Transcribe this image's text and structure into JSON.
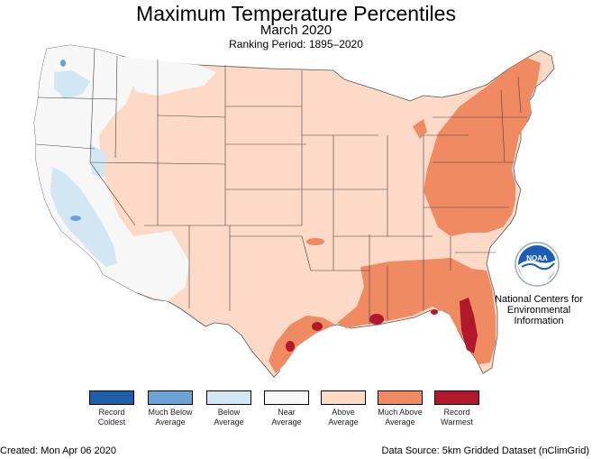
{
  "header": {
    "title": "Maximum Temperature Percentiles",
    "subtitle": "March 2020",
    "ranking": "Ranking Period: 1895–2020"
  },
  "agency": {
    "logo_icon": "noaa-logo-icon",
    "logo_text": "NOAA",
    "name": "National Centers for Environmental Information"
  },
  "legend": [
    {
      "label": "Record Coldest",
      "color": "#1f5ea8"
    },
    {
      "label": "Much Below Average",
      "color": "#6ba3d6"
    },
    {
      "label": "Below Average",
      "color": "#d3e6f4"
    },
    {
      "label": "Near Average",
      "color": "#f7f7f7"
    },
    {
      "label": "Above Average",
      "color": "#fcdac7"
    },
    {
      "label": "Much Above Average",
      "color": "#ef8a62"
    },
    {
      "label": "Record Warmest",
      "color": "#b2182b"
    }
  ],
  "footer": {
    "created": "Created: Mon Apr 06 2020",
    "source": "Data Source: 5km Gridded Dataset (nClimGrid)"
  }
}
